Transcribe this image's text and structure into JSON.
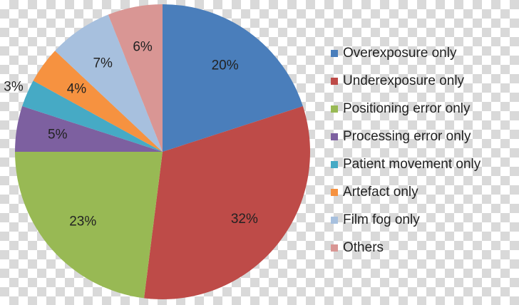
{
  "chart_data": {
    "type": "pie",
    "categories": [
      "Overexposure only",
      "Underexposure only",
      "Positioning error only",
      "Processing error only",
      "Patient movement only",
      "Artefact only",
      "Film fog only",
      "Others"
    ],
    "values": [
      20,
      32,
      23,
      5,
      3,
      4,
      7,
      6
    ],
    "value_labels": [
      "20%",
      "32%",
      "23%",
      "5%",
      "3%",
      "4%",
      "7%",
      "6%"
    ],
    "colors": [
      "#4a7ebb",
      "#be4b48",
      "#98b954",
      "#7d60a0",
      "#46aac5",
      "#f69240",
      "#a7c0de",
      "#d99694"
    ],
    "legend": "right"
  }
}
